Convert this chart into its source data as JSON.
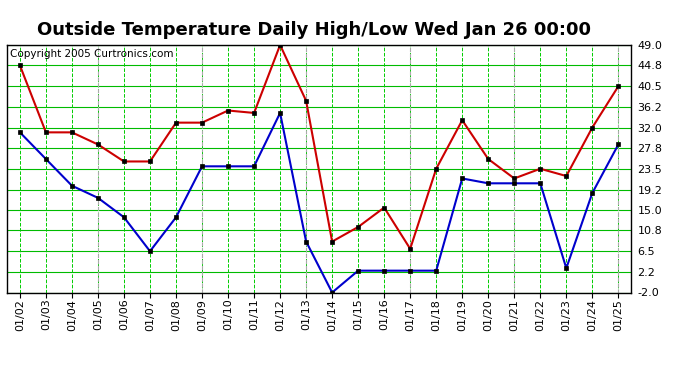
{
  "title": "Outside Temperature Daily High/Low Wed Jan 26 00:00",
  "copyright": "Copyright 2005 Curtronics.com",
  "x_labels": [
    "01/02",
    "01/03",
    "01/04",
    "01/05",
    "01/06",
    "01/07",
    "01/08",
    "01/09",
    "01/10",
    "01/11",
    "01/12",
    "01/13",
    "01/14",
    "01/15",
    "01/16",
    "01/17",
    "01/18",
    "01/19",
    "01/20",
    "01/21",
    "01/22",
    "01/23",
    "01/24",
    "01/25"
  ],
  "high_values": [
    44.8,
    31.0,
    31.0,
    28.5,
    25.0,
    25.0,
    33.0,
    33.0,
    35.5,
    35.0,
    49.0,
    37.5,
    8.5,
    11.5,
    15.5,
    7.0,
    23.5,
    33.5,
    25.5,
    21.5,
    23.5,
    22.0,
    32.0,
    40.5
  ],
  "low_values": [
    31.0,
    25.5,
    20.0,
    17.5,
    13.5,
    6.5,
    13.5,
    24.0,
    24.0,
    24.0,
    35.0,
    8.5,
    -2.0,
    2.5,
    2.5,
    2.5,
    2.5,
    21.5,
    20.5,
    20.5,
    20.5,
    3.0,
    18.5,
    28.5
  ],
  "high_color": "#cc0000",
  "low_color": "#0000cc",
  "marker_color": "#000000",
  "bg_color": "#ffffff",
  "plot_bg_color": "#ffffff",
  "grid_h_color": "#00bb00",
  "grid_v_dashed_color": "#00cc00",
  "grid_v_gray_color": "#aaaaaa",
  "y_ticks": [
    -2.0,
    2.2,
    6.5,
    10.8,
    15.0,
    19.2,
    23.5,
    27.8,
    32.0,
    36.2,
    40.5,
    44.8,
    49.0
  ],
  "y_min": -2.0,
  "y_max": 49.0,
  "title_fontsize": 13,
  "tick_fontsize": 8,
  "copyright_fontsize": 7.5,
  "gray_vlines": [
    3,
    7,
    11,
    15,
    19,
    23
  ]
}
